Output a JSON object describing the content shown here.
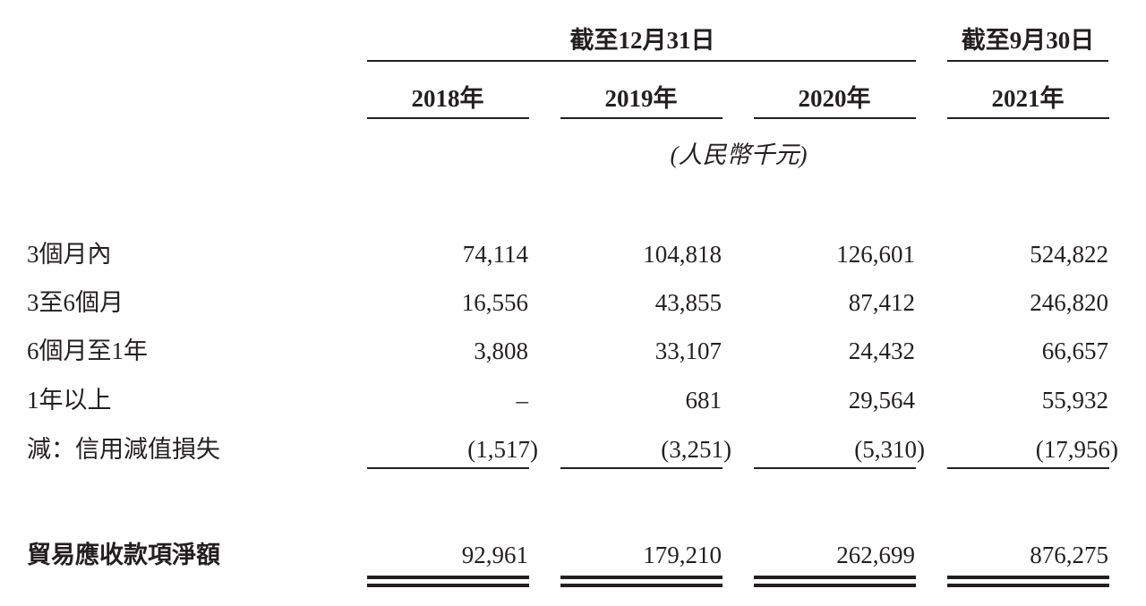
{
  "header": {
    "groups": [
      "截至12月31日",
      "截至9月30日"
    ],
    "years": [
      "2018年",
      "2019年",
      "2020年",
      "2021年"
    ],
    "unit": "(人民幣千元)"
  },
  "table": {
    "rows": [
      {
        "label": "3個月內",
        "values": [
          "74,114",
          "104,818",
          "126,601",
          "524,822"
        ]
      },
      {
        "label": "3至6個月",
        "values": [
          "16,556",
          "43,855",
          "87,412",
          "246,820"
        ]
      },
      {
        "label": "6個月至1年",
        "values": [
          "3,808",
          "33,107",
          "24,432",
          "66,657"
        ]
      },
      {
        "label": "1年以上",
        "values": [
          "–",
          "681",
          "29,564",
          "55,932"
        ]
      },
      {
        "label": "減：信用減值損失",
        "values": [
          "(1,517)",
          "(3,251)",
          "(5,310)",
          "(17,956)"
        ]
      }
    ],
    "total": {
      "label": "貿易應收款項淨額",
      "values": [
        "92,961",
        "179,210",
        "262,699",
        "876,275"
      ]
    }
  }
}
